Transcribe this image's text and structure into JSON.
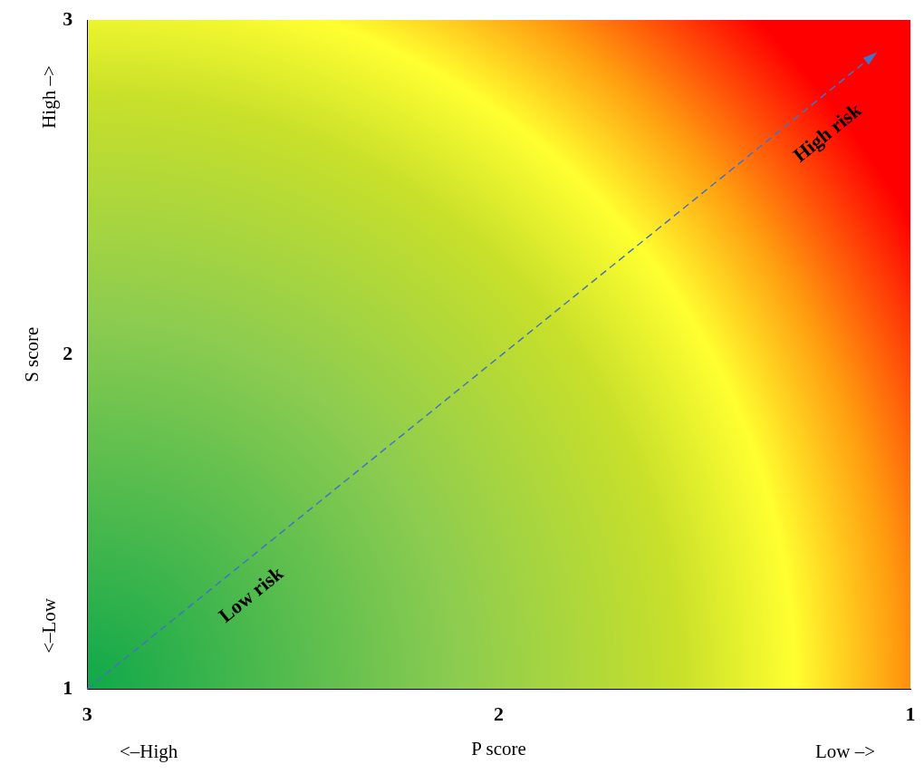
{
  "chart_data": {
    "type": "line",
    "xlabel": "P score",
    "ylabel": "S score",
    "xlim": [
      3,
      1
    ],
    "xticks": [
      3,
      2,
      1
    ],
    "ylim": [
      1,
      3
    ],
    "yticks": [
      1,
      2,
      3
    ],
    "grid": false,
    "legend": false,
    "annotations": [
      "<–High",
      "Low –>",
      "High –>",
      "<–Low",
      "Low risk",
      "High risk"
    ]
  }
}
